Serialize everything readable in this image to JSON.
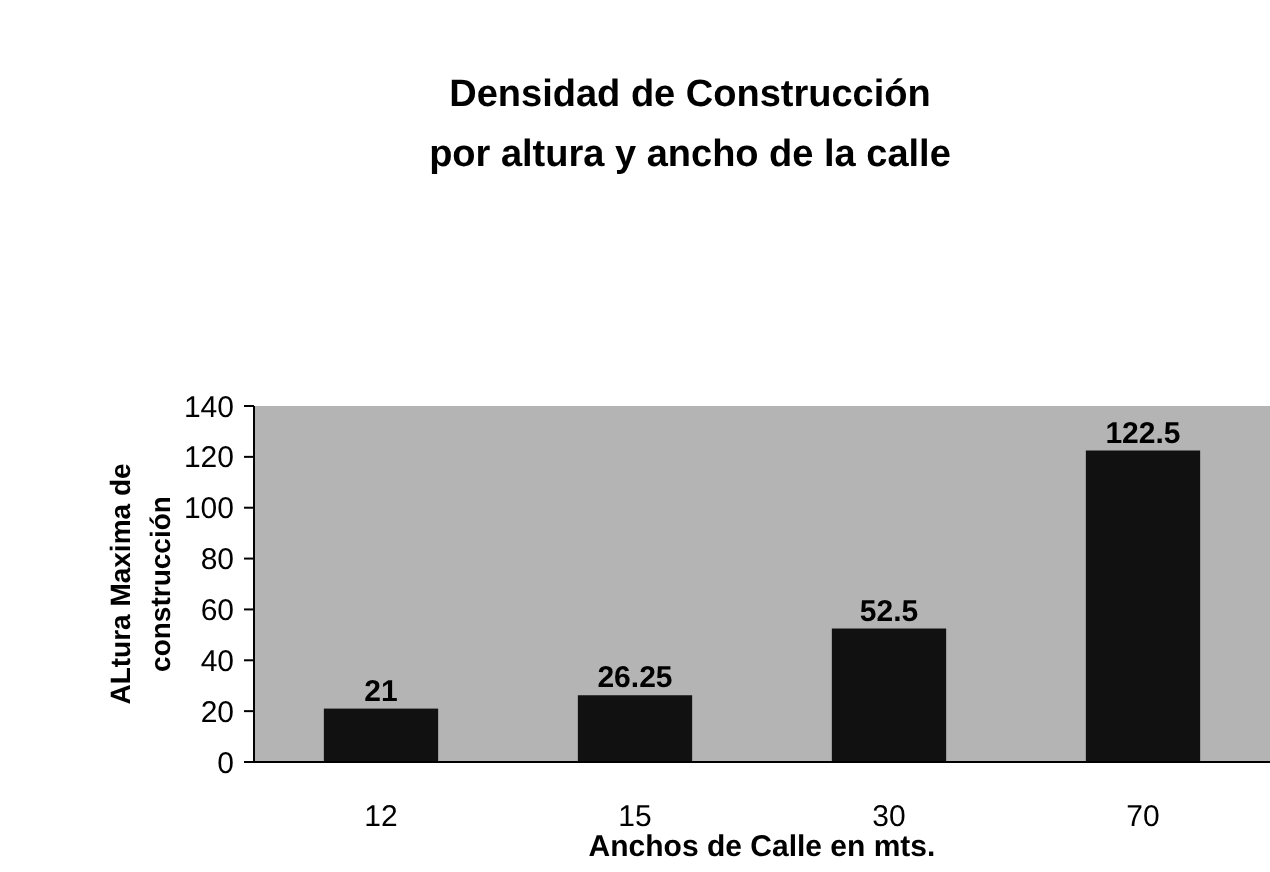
{
  "chart_data": {
    "type": "bar",
    "title": "Densidad de Construcción\npor altura y ancho de la calle",
    "xlabel": "Anchos de Calle en mts.",
    "ylabel": "ALtura Maxima de\nconstrucción",
    "categories": [
      "12",
      "15",
      "30",
      "70"
    ],
    "values": [
      21,
      26.25,
      52.5,
      122.5
    ],
    "color": "#111111",
    "ylim": [
      0,
      140
    ],
    "yticks": [
      0,
      20,
      40,
      60,
      80,
      100,
      120,
      140
    ],
    "data_labels": true,
    "grid": false
  }
}
